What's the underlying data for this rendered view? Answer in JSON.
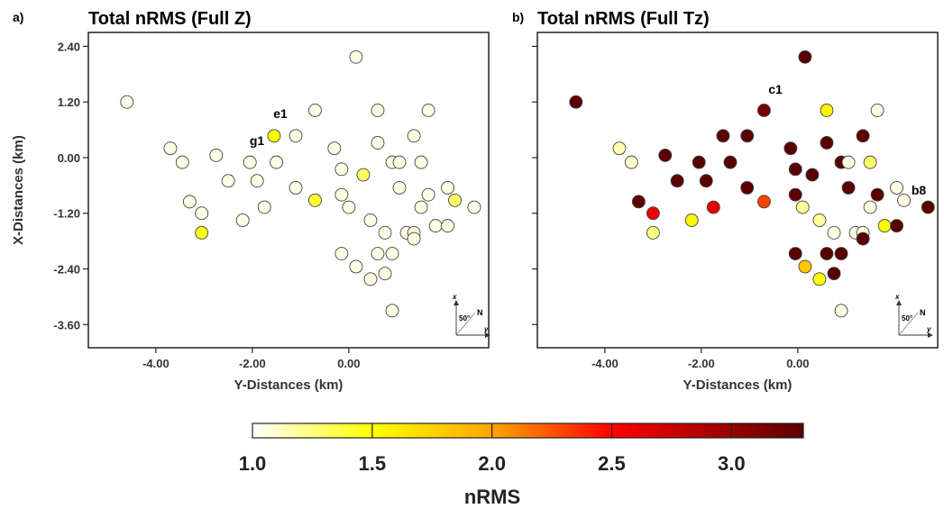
{
  "colors": {
    "frame": "#222222",
    "marker_stroke": "#444444",
    "colorbar_stops": [
      "#ffffff",
      "#ffff00",
      "#ffa500",
      "#ff0000",
      "#5a0000"
    ]
  },
  "chart_data": [
    {
      "type": "scatter",
      "panel_tag": "a)",
      "title": "Total nRMS (Full Z)",
      "xlabel": "Y-Distances (km)",
      "ylabel": "X-Distances (km)",
      "xlim": [
        -5.4,
        2.9
      ],
      "ylim": [
        -4.1,
        2.7
      ],
      "xticks": [
        -4,
        -2,
        0
      ],
      "xtick_labels": [
        "-4.00",
        "-2.00",
        "0.00"
      ],
      "yticks": [
        2.4,
        1.2,
        0,
        -1.2,
        -2.4,
        -3.6
      ],
      "ytick_labels": [
        "2.40",
        "1.20",
        "0.00",
        "-1.20",
        "-2.40",
        "-3.60"
      ],
      "compass": {
        "x_label": "x",
        "y_label": "y",
        "angle": "50°",
        "north": "N"
      },
      "annotations": [
        {
          "text": "e1",
          "x": -1.65,
          "y": 0.78
        },
        {
          "text": "g1",
          "x": -2.2,
          "y": 0.28
        }
      ],
      "points": [
        {
          "x": -4.6,
          "y": 1.2,
          "v": 1.05
        },
        {
          "x": -3.7,
          "y": 0.2,
          "v": 1.05
        },
        {
          "x": -3.45,
          "y": -0.1,
          "v": 1.05
        },
        {
          "x": -2.75,
          "y": 0.05,
          "v": 1.05
        },
        {
          "x": -2.5,
          "y": -0.5,
          "v": 1.05
        },
        {
          "x": -3.3,
          "y": -0.95,
          "v": 1.05
        },
        {
          "x": -3.05,
          "y": -1.2,
          "v": 1.05
        },
        {
          "x": -3.05,
          "y": -1.62,
          "v": 1.45
        },
        {
          "x": -2.2,
          "y": -1.35,
          "v": 1.05
        },
        {
          "x": -2.05,
          "y": -0.1,
          "v": 1.05
        },
        {
          "x": -1.9,
          "y": -0.5,
          "v": 1.05
        },
        {
          "x": -1.75,
          "y": -1.07,
          "v": 1.05
        },
        {
          "x": -1.55,
          "y": 0.47,
          "v": 1.5
        },
        {
          "x": -1.5,
          "y": -0.1,
          "v": 1.05
        },
        {
          "x": -1.1,
          "y": 0.47,
          "v": 1.05
        },
        {
          "x": -1.1,
          "y": -0.65,
          "v": 1.05
        },
        {
          "x": -0.7,
          "y": 1.02,
          "v": 1.05
        },
        {
          "x": -0.7,
          "y": -0.92,
          "v": 1.4
        },
        {
          "x": -0.3,
          "y": 0.2,
          "v": 1.05
        },
        {
          "x": -0.15,
          "y": -0.25,
          "v": 1.05
        },
        {
          "x": -0.15,
          "y": -0.8,
          "v": 1.05
        },
        {
          "x": 0.0,
          "y": -1.07,
          "v": 1.05
        },
        {
          "x": -0.15,
          "y": -2.07,
          "v": 1.05
        },
        {
          "x": 0.15,
          "y": 2.17,
          "v": 1.05
        },
        {
          "x": 0.15,
          "y": -2.35,
          "v": 1.05
        },
        {
          "x": 0.3,
          "y": -0.37,
          "v": 1.3
        },
        {
          "x": 0.45,
          "y": -1.35,
          "v": 1.05
        },
        {
          "x": 0.45,
          "y": -2.62,
          "v": 1.05
        },
        {
          "x": 0.6,
          "y": 1.02,
          "v": 1.05
        },
        {
          "x": 0.6,
          "y": 0.32,
          "v": 1.05
        },
        {
          "x": 0.6,
          "y": -2.07,
          "v": 1.05
        },
        {
          "x": 0.75,
          "y": -1.62,
          "v": 1.05
        },
        {
          "x": 0.75,
          "y": -2.5,
          "v": 1.05
        },
        {
          "x": 0.9,
          "y": -0.1,
          "v": 1.05
        },
        {
          "x": 0.9,
          "y": -2.07,
          "v": 1.05
        },
        {
          "x": 0.9,
          "y": -3.3,
          "v": 1.05
        },
        {
          "x": 1.05,
          "y": -0.1,
          "v": 1.05
        },
        {
          "x": 1.05,
          "y": -0.65,
          "v": 1.05
        },
        {
          "x": 1.2,
          "y": -1.62,
          "v": 1.05
        },
        {
          "x": 1.35,
          "y": 0.47,
          "v": 1.05
        },
        {
          "x": 1.35,
          "y": -1.62,
          "v": 1.05
        },
        {
          "x": 1.35,
          "y": -1.75,
          "v": 1.05
        },
        {
          "x": 1.5,
          "y": -0.1,
          "v": 1.05
        },
        {
          "x": 1.5,
          "y": -1.07,
          "v": 1.05
        },
        {
          "x": 1.65,
          "y": 1.02,
          "v": 1.05
        },
        {
          "x": 1.65,
          "y": -0.8,
          "v": 1.05
        },
        {
          "x": 1.8,
          "y": -1.47,
          "v": 1.05
        },
        {
          "x": 2.05,
          "y": -0.65,
          "v": 1.05
        },
        {
          "x": 2.05,
          "y": -1.47,
          "v": 1.05
        },
        {
          "x": 2.2,
          "y": -0.92,
          "v": 1.3
        },
        {
          "x": 2.6,
          "y": -1.07,
          "v": 1.05
        }
      ]
    },
    {
      "type": "scatter",
      "panel_tag": "b)",
      "title": "Total nRMS (Full Tz)",
      "xlabel": "Y-Distances (km)",
      "ylabel": "",
      "xlim": [
        -5.4,
        2.9
      ],
      "ylim": [
        -4.1,
        2.7
      ],
      "xticks": [
        -4,
        -2,
        0
      ],
      "xtick_labels": [
        "-4.00",
        "-2.00",
        "0.00"
      ],
      "yticks": [
        2.4,
        1.2,
        0,
        -1.2,
        -2.4,
        -3.6
      ],
      "ytick_labels": [],
      "compass": {
        "x_label": "x",
        "y_label": "y",
        "angle": "50°",
        "north": "N"
      },
      "annotations": [
        {
          "text": "c1",
          "x": -0.7,
          "y": 1.4
        },
        {
          "text": "b8",
          "x": 2.4,
          "y": -0.75
        }
      ],
      "points": [
        {
          "x": -4.6,
          "y": 1.2,
          "v": 3.3
        },
        {
          "x": -3.7,
          "y": 0.2,
          "v": 1.15
        },
        {
          "x": -3.45,
          "y": -0.1,
          "v": 1.1
        },
        {
          "x": -3.3,
          "y": -0.95,
          "v": 3.3
        },
        {
          "x": -3.0,
          "y": -1.2,
          "v": 2.6
        },
        {
          "x": -3.0,
          "y": -1.62,
          "v": 1.25
        },
        {
          "x": -2.75,
          "y": 0.05,
          "v": 3.3
        },
        {
          "x": -2.5,
          "y": -0.5,
          "v": 3.3
        },
        {
          "x": -2.2,
          "y": -1.35,
          "v": 1.55
        },
        {
          "x": -2.05,
          "y": -0.1,
          "v": 3.3
        },
        {
          "x": -1.9,
          "y": -0.5,
          "v": 3.3
        },
        {
          "x": -1.75,
          "y": -1.07,
          "v": 2.6
        },
        {
          "x": -1.55,
          "y": 0.47,
          "v": 3.3
        },
        {
          "x": -1.4,
          "y": -0.1,
          "v": 3.3
        },
        {
          "x": -1.05,
          "y": 0.47,
          "v": 3.3
        },
        {
          "x": -1.05,
          "y": -0.65,
          "v": 3.3
        },
        {
          "x": -0.7,
          "y": 1.02,
          "v": 3.15
        },
        {
          "x": -0.7,
          "y": -0.95,
          "v": 2.3
        },
        {
          "x": -0.15,
          "y": 0.2,
          "v": 3.3
        },
        {
          "x": -0.05,
          "y": -0.25,
          "v": 3.3
        },
        {
          "x": -0.05,
          "y": -0.8,
          "v": 3.3
        },
        {
          "x": -0.05,
          "y": -2.07,
          "v": 3.3
        },
        {
          "x": 0.1,
          "y": -1.07,
          "v": 1.2
        },
        {
          "x": 0.15,
          "y": 2.17,
          "v": 3.3
        },
        {
          "x": 0.15,
          "y": -2.35,
          "v": 1.8
        },
        {
          "x": 0.3,
          "y": -0.37,
          "v": 3.3
        },
        {
          "x": 0.45,
          "y": -1.35,
          "v": 1.2
        },
        {
          "x": 0.45,
          "y": -2.62,
          "v": 1.5
        },
        {
          "x": 0.6,
          "y": 1.02,
          "v": 1.55
        },
        {
          "x": 0.6,
          "y": 0.32,
          "v": 3.3
        },
        {
          "x": 0.6,
          "y": -2.07,
          "v": 3.3
        },
        {
          "x": 0.75,
          "y": -1.62,
          "v": 1.05
        },
        {
          "x": 0.75,
          "y": -2.5,
          "v": 3.3
        },
        {
          "x": 0.9,
          "y": -0.1,
          "v": 3.3
        },
        {
          "x": 0.9,
          "y": -2.07,
          "v": 3.3
        },
        {
          "x": 0.9,
          "y": -3.3,
          "v": 1.05
        },
        {
          "x": 1.05,
          "y": -0.1,
          "v": 1.05
        },
        {
          "x": 1.05,
          "y": -0.65,
          "v": 3.3
        },
        {
          "x": 1.2,
          "y": -1.62,
          "v": 1.05
        },
        {
          "x": 1.35,
          "y": 0.47,
          "v": 3.3
        },
        {
          "x": 1.35,
          "y": -1.62,
          "v": 1.05
        },
        {
          "x": 1.35,
          "y": -1.75,
          "v": 3.3
        },
        {
          "x": 1.5,
          "y": -0.1,
          "v": 1.3
        },
        {
          "x": 1.5,
          "y": -1.07,
          "v": 1.05
        },
        {
          "x": 1.65,
          "y": 1.02,
          "v": 1.05
        },
        {
          "x": 1.65,
          "y": -0.8,
          "v": 3.3
        },
        {
          "x": 1.8,
          "y": -1.47,
          "v": 1.5
        },
        {
          "x": 2.05,
          "y": -0.65,
          "v": 1.05
        },
        {
          "x": 2.05,
          "y": -1.47,
          "v": 3.3
        },
        {
          "x": 2.2,
          "y": -0.92,
          "v": 1.05
        },
        {
          "x": 2.7,
          "y": -1.07,
          "v": 3.3
        }
      ]
    }
  ],
  "colorbar": {
    "label": "nRMS",
    "range": [
      1.0,
      3.3
    ],
    "ticks": [
      1.0,
      1.5,
      2.0,
      2.5,
      3.0
    ],
    "tick_labels": [
      "1.0",
      "1.5",
      "2.0",
      "2.5",
      "3.0"
    ]
  }
}
